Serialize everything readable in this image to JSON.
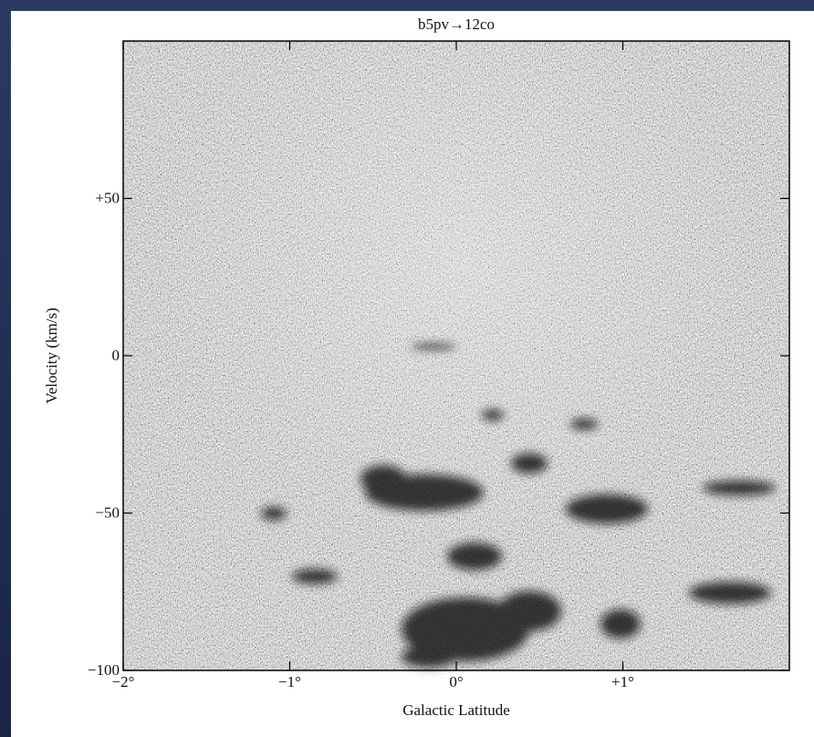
{
  "chart_data": {
    "type": "image",
    "title": "b5pv→12co",
    "x_label": "Galactic Latitude",
    "y_label": "Velocity (km/s)",
    "xlim": [
      -2,
      2
    ],
    "ylim": [
      -100,
      100
    ],
    "xticks": [
      {
        "value": -2,
        "label": "−2°"
      },
      {
        "value": -1,
        "label": "−1°"
      },
      {
        "value": 0,
        "label": "0°"
      },
      {
        "value": 1,
        "label": "+1°"
      }
    ],
    "yticks": [
      {
        "value": 50,
        "label": "+50"
      },
      0,
      {
        "value": -50,
        "label": "−50"
      },
      {
        "value": -100,
        "label": "−100"
      }
    ]
  }
}
